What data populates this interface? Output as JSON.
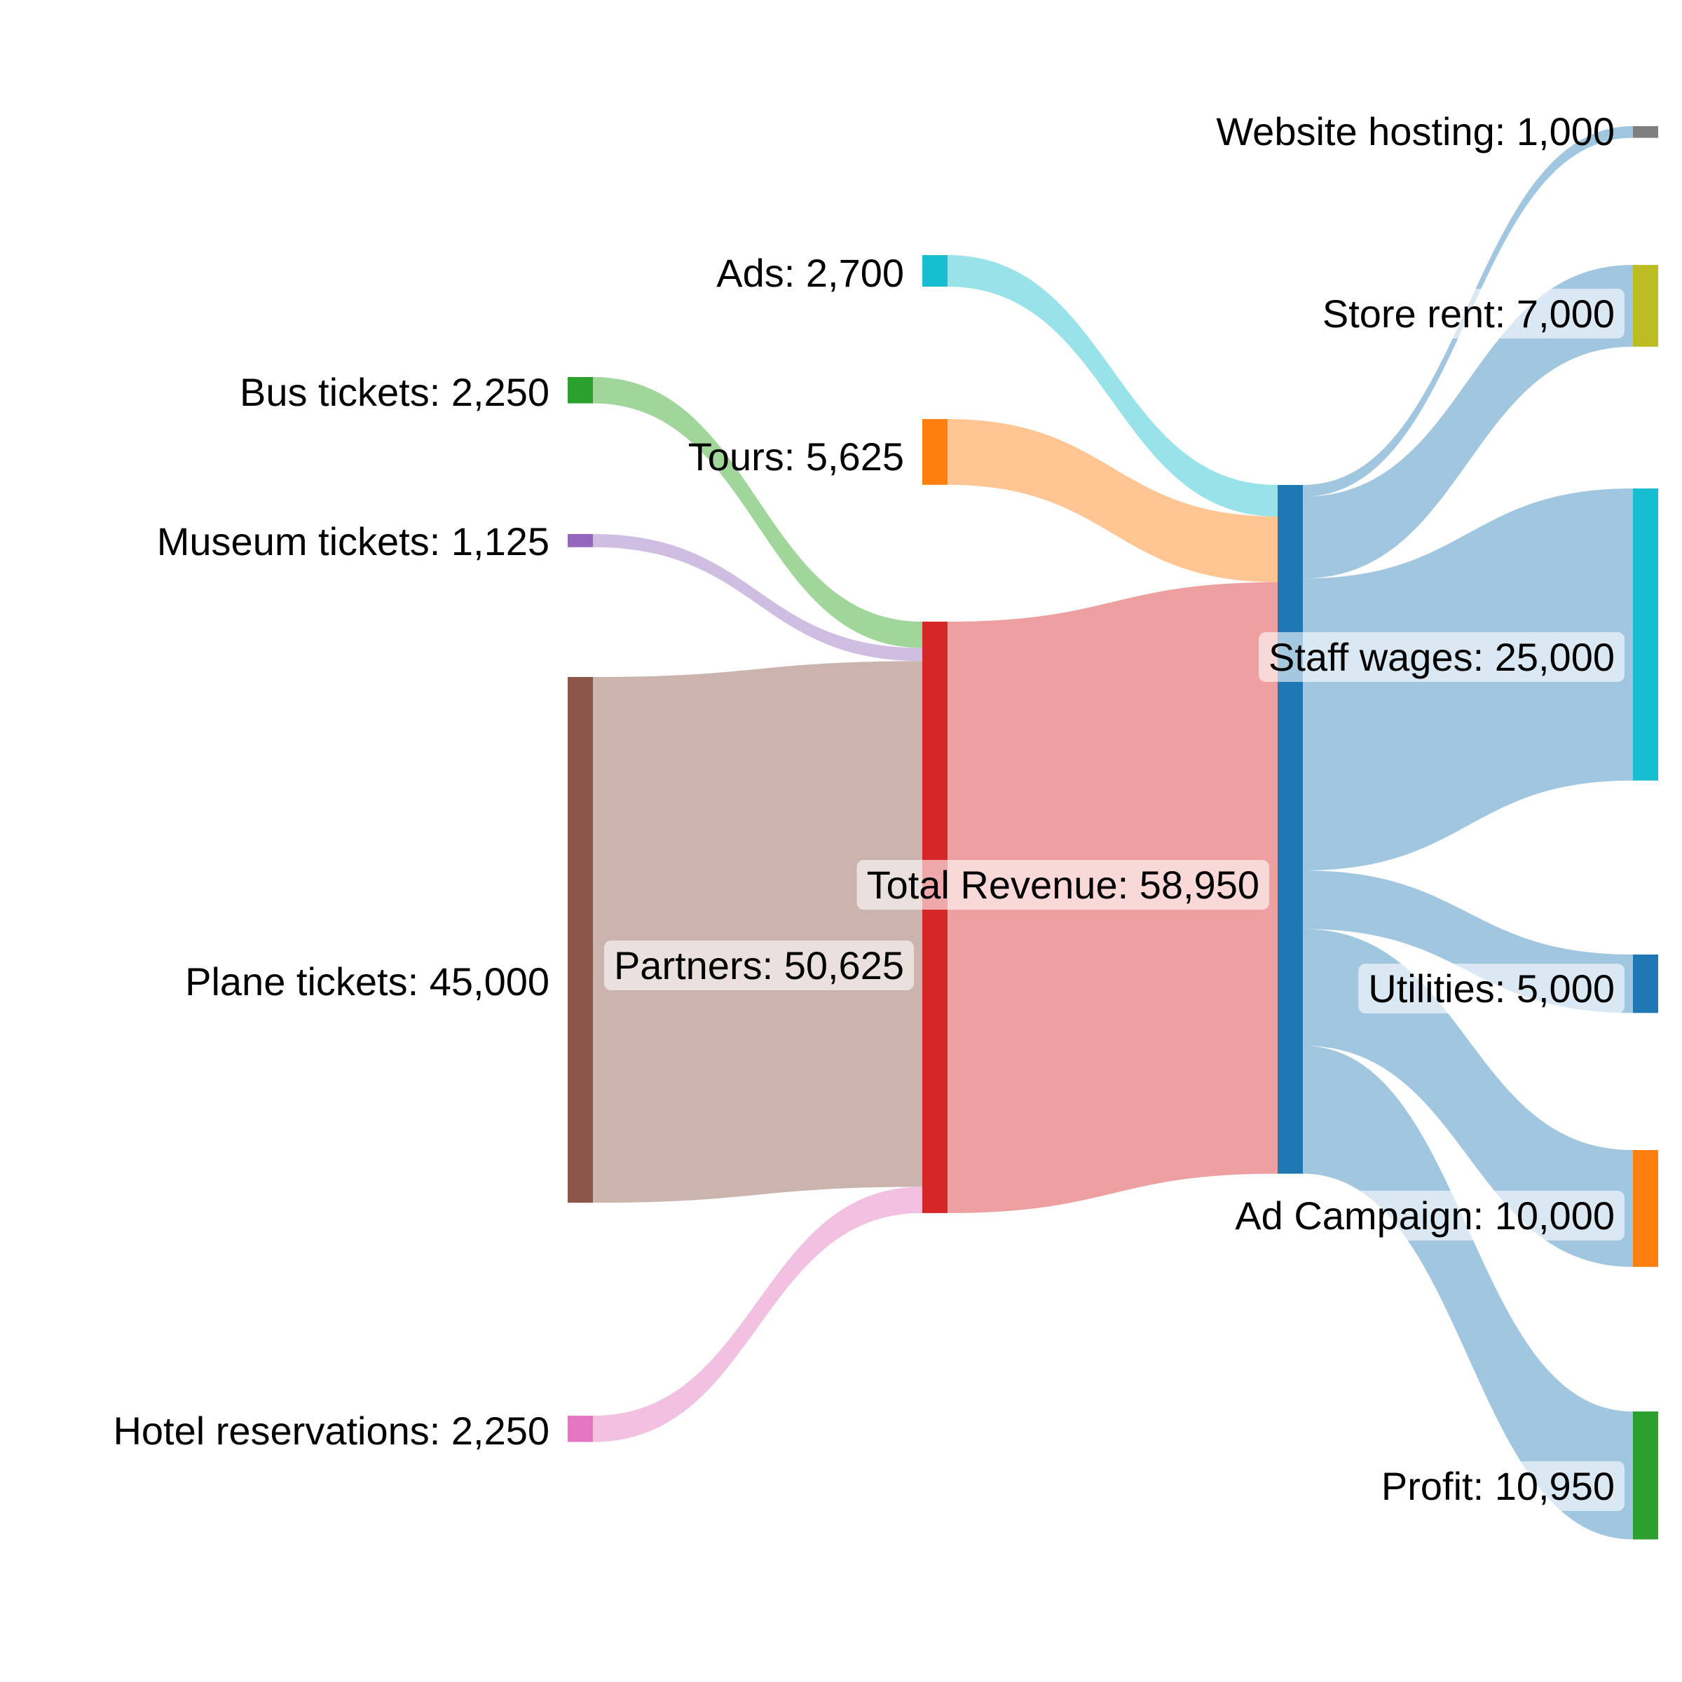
{
  "chart_data": {
    "type": "sankey",
    "nodes": [
      {
        "id": "bus",
        "label": "Bus tickets: 2,250",
        "value": 2250,
        "color": "#2ca02c",
        "link_color": "#a0d69a"
      },
      {
        "id": "museum",
        "label": "Museum tickets: 1,125",
        "value": 1125,
        "color": "#9467bd",
        "link_color": "#d0bde2"
      },
      {
        "id": "plane",
        "label": "Plane tickets: 45,000",
        "value": 45000,
        "color": "#8c564b",
        "link_color": "#cbb3ae"
      },
      {
        "id": "hotel",
        "label": "Hotel reservations: 2,250",
        "value": 2250,
        "color": "#e377c2",
        "link_color": "#f2c1e2"
      },
      {
        "id": "ads",
        "label": "Ads: 2,700",
        "value": 2700,
        "color": "#17becf",
        "link_color": "#98e3e9"
      },
      {
        "id": "tours",
        "label": "Tours: 5,625",
        "value": 5625,
        "color": "#ff7f0e",
        "link_color": "#ffc593"
      },
      {
        "id": "partners",
        "label": "Partners: 50,625",
        "value": 50625,
        "color": "#d62728",
        "link_color": "#eda09f"
      },
      {
        "id": "total",
        "label": "Total Revenue: 58,950",
        "value": 58950,
        "color": "#1f77b4",
        "link_color": "#a1c6df"
      },
      {
        "id": "website",
        "label": "Website hosting: 1,000",
        "value": 1000,
        "color": "#7f7f7f",
        "link_color": "#cccccc"
      },
      {
        "id": "rent",
        "label": "Store rent: 7,000",
        "value": 7000,
        "color": "#bcbd22",
        "link_color": "#e2e29b"
      },
      {
        "id": "wages",
        "label": "Staff wages: 25,000",
        "value": 25000,
        "color": "#17becf",
        "link_color": "#98e3e9"
      },
      {
        "id": "utilities",
        "label": "Utilities: 5,000",
        "value": 5000,
        "color": "#1f77b4",
        "link_color": "#a1c6df"
      },
      {
        "id": "adcampaign",
        "label": "Ad Campaign: 10,000",
        "value": 10000,
        "color": "#ff7f0e",
        "link_color": "#ffc593"
      },
      {
        "id": "profit",
        "label": "Profit: 10,950",
        "value": 10950,
        "color": "#2ca02c",
        "link_color": "#a0d69a"
      }
    ],
    "links": [
      {
        "source": "bus",
        "target": "partners",
        "value": 2250
      },
      {
        "source": "museum",
        "target": "partners",
        "value": 1125
      },
      {
        "source": "plane",
        "target": "partners",
        "value": 45000
      },
      {
        "source": "hotel",
        "target": "partners",
        "value": 2250
      },
      {
        "source": "ads",
        "target": "total",
        "value": 2700
      },
      {
        "source": "tours",
        "target": "total",
        "value": 5625
      },
      {
        "source": "partners",
        "target": "total",
        "value": 50625
      },
      {
        "source": "total",
        "target": "website",
        "value": 1000
      },
      {
        "source": "total",
        "target": "rent",
        "value": 7000
      },
      {
        "source": "total",
        "target": "wages",
        "value": 25000
      },
      {
        "source": "total",
        "target": "utilities",
        "value": 5000
      },
      {
        "source": "total",
        "target": "adcampaign",
        "value": 10000
      },
      {
        "source": "total",
        "target": "profit",
        "value": 10950
      }
    ]
  }
}
